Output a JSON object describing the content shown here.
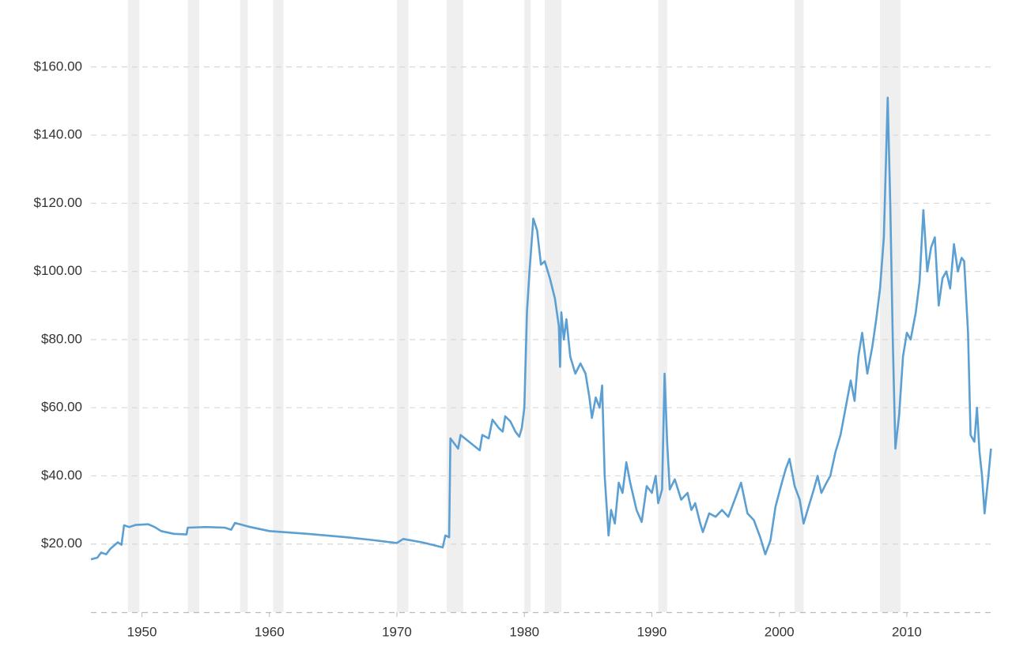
{
  "chart_data": {
    "type": "line",
    "x": [
      1946.0,
      1946.5,
      1946.8,
      1947.2,
      1947.5,
      1947.8,
      1948.1,
      1948.4,
      1948.6,
      1949.0,
      1949.5,
      1950.5,
      1951.0,
      1951.5,
      1952.5,
      1953.5,
      1953.6,
      1955.0,
      1956.5,
      1957.0,
      1957.3,
      1958.5,
      1960.0,
      1963.0,
      1966.0,
      1968.0,
      1970.0,
      1970.5,
      1972.0,
      1973.6,
      1973.8,
      1974.1,
      1974.2,
      1974.8,
      1975.0,
      1976.0,
      1976.5,
      1976.7,
      1977.2,
      1977.5,
      1978.0,
      1978.3,
      1978.5,
      1978.9,
      1979.3,
      1979.6,
      1979.8,
      1980.0,
      1980.2,
      1980.4,
      1980.6,
      1980.7,
      1981.0,
      1981.3,
      1981.6,
      1982.0,
      1982.4,
      1982.7,
      1982.8,
      1982.9,
      1983.1,
      1983.3,
      1983.6,
      1984.0,
      1984.4,
      1984.8,
      1985.1,
      1985.3,
      1985.6,
      1985.9,
      1986.1,
      1986.3,
      1986.6,
      1986.8,
      1987.1,
      1987.4,
      1987.7,
      1988.0,
      1988.3,
      1988.8,
      1989.2,
      1989.6,
      1990.0,
      1990.3,
      1990.5,
      1990.8,
      1991.0,
      1991.2,
      1991.4,
      1991.8,
      1992.3,
      1992.8,
      1993.1,
      1993.4,
      1993.8,
      1994.0,
      1994.5,
      1995.0,
      1995.5,
      1996.0,
      1996.5,
      1997.0,
      1997.5,
      1998.0,
      1998.5,
      1998.9,
      1999.3,
      1999.7,
      2000.2,
      2000.5,
      2000.8,
      2001.2,
      2001.6,
      2001.9,
      2002.3,
      2002.7,
      2003.0,
      2003.3,
      2003.7,
      2004.0,
      2004.4,
      2004.8,
      2005.2,
      2005.6,
      2005.9,
      2006.2,
      2006.5,
      2006.9,
      2007.3,
      2007.6,
      2007.9,
      2008.2,
      2008.5,
      2008.7,
      2008.9,
      2009.1,
      2009.4,
      2009.7,
      2010.0,
      2010.3,
      2010.7,
      2011.0,
      2011.3,
      2011.6,
      2011.9,
      2012.2,
      2012.5,
      2012.8,
      2013.1,
      2013.4,
      2013.7,
      2014.0,
      2014.3,
      2014.5,
      2014.8,
      2015.0,
      2015.3,
      2015.5,
      2015.7,
      2015.9,
      2016.1,
      2016.4,
      2016.6
    ],
    "values": [
      15.5,
      16,
      17.5,
      17,
      18.5,
      19.5,
      20.5,
      19.8,
      25.5,
      25,
      25.6,
      25.8,
      25,
      23.8,
      23,
      22.8,
      24.8,
      25,
      24.8,
      24.2,
      26.2,
      25,
      23.8,
      23,
      22,
      21.2,
      20.3,
      21.5,
      20.5,
      19,
      22.5,
      22,
      51,
      48,
      52,
      49,
      47.5,
      52,
      51,
      56.5,
      54,
      53,
      57.5,
      56,
      53,
      51.5,
      54,
      60,
      88,
      100,
      110,
      115.5,
      112,
      102,
      103,
      98,
      92,
      84,
      72,
      88,
      80,
      86,
      75,
      70,
      73,
      70,
      63,
      57,
      63,
      60,
      66.5,
      40,
      22.5,
      30,
      26,
      38,
      35,
      44,
      38,
      30,
      26.5,
      37,
      35,
      40,
      32,
      36,
      70,
      50,
      36,
      39,
      33,
      35,
      30,
      32,
      26,
      23.5,
      29,
      28,
      30,
      28,
      33,
      38,
      29,
      27,
      22,
      17,
      21,
      31,
      38,
      42,
      45,
      37,
      33,
      26,
      31,
      36,
      40,
      35,
      38,
      40,
      47,
      52,
      60,
      68,
      62,
      75,
      82,
      70,
      78,
      86,
      95,
      110,
      151,
      120,
      80,
      48,
      58,
      75,
      82,
      80,
      88,
      97,
      118,
      100,
      107,
      110,
      90,
      98,
      100,
      95,
      108,
      100,
      104,
      103,
      82,
      52,
      50,
      60,
      47,
      40,
      29,
      40,
      48
    ],
    "color": "#5b9fd3",
    "recessions": [
      [
        1948.9,
        1949.8
      ],
      [
        1953.6,
        1954.5
      ],
      [
        1957.7,
        1958.3
      ],
      [
        1960.3,
        1961.1
      ],
      [
        1970.0,
        1970.9
      ],
      [
        1973.9,
        1975.2
      ],
      [
        1980.0,
        1980.5
      ],
      [
        1981.6,
        1982.9
      ],
      [
        1990.5,
        1991.2
      ],
      [
        2001.2,
        2001.9
      ],
      [
        2007.9,
        2009.5
      ]
    ],
    "xlim": [
      1946,
      2016.7
    ],
    "xticks": [
      1950,
      1960,
      1970,
      1980,
      1990,
      2000,
      2010
    ],
    "ylim": [
      0,
      180
    ],
    "yticks": [
      {
        "value": 20,
        "label": "$20.00"
      },
      {
        "value": 40,
        "label": "$40.00"
      },
      {
        "value": 60,
        "label": "$60.00"
      },
      {
        "value": 80,
        "label": "$80.00"
      },
      {
        "value": 100,
        "label": "$100.00"
      },
      {
        "value": 120,
        "label": "$120.00"
      },
      {
        "value": 140,
        "label": "$140.00"
      },
      {
        "value": 160,
        "label": "$160.00"
      }
    ],
    "grid": true
  }
}
